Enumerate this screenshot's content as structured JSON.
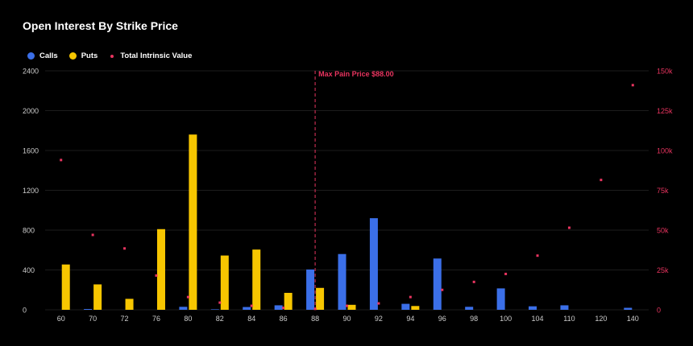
{
  "title": "Open Interest By Strike Price",
  "legend": {
    "calls": "Calls",
    "puts": "Puts",
    "intrinsic": "Total Intrinsic Value"
  },
  "colors": {
    "calls": "#3b6fe8",
    "puts": "#f7c600",
    "intrinsic": "#e8345f",
    "grid": "#1c1c1c",
    "tick": "#cccccc"
  },
  "annotation": {
    "label": "Max Pain Price $88.00",
    "category": "88"
  },
  "chart_data": {
    "type": "bar",
    "title": "Open Interest By Strike Price",
    "categories": [
      "60",
      "70",
      "72",
      "76",
      "80",
      "82",
      "84",
      "86",
      "88",
      "90",
      "92",
      "94",
      "96",
      "98",
      "100",
      "104",
      "110",
      "120",
      "140"
    ],
    "series": [
      {
        "name": "Calls",
        "type": "bar",
        "axis": "left",
        "values": [
          0,
          8,
          0,
          0,
          30,
          5,
          28,
          45,
          405,
          560,
          920,
          60,
          515,
          30,
          215,
          35,
          45,
          0,
          20
        ]
      },
      {
        "name": "Puts",
        "type": "bar",
        "axis": "left",
        "values": [
          455,
          255,
          110,
          810,
          1760,
          545,
          605,
          170,
          220,
          50,
          0,
          38,
          0,
          0,
          0,
          0,
          0,
          0,
          0
        ]
      },
      {
        "name": "Total Intrinsic Value",
        "type": "scatter",
        "axis": "right",
        "values": [
          94000,
          47000,
          38500,
          21500,
          8000,
          4500,
          2500,
          1200,
          600,
          2500,
          4000,
          8000,
          12500,
          17500,
          22500,
          34000,
          51500,
          81500,
          141000
        ]
      }
    ],
    "ylim_left": [
      0,
      2400
    ],
    "yticks_left": [
      "0",
      "400",
      "800",
      "1200",
      "1600",
      "2000",
      "2400"
    ],
    "ylim_right": [
      0,
      150000
    ],
    "yticks_right": [
      "0",
      "25k",
      "50k",
      "75k",
      "100k",
      "125k",
      "150k"
    ],
    "legend_position": "top-left",
    "grid": true
  }
}
